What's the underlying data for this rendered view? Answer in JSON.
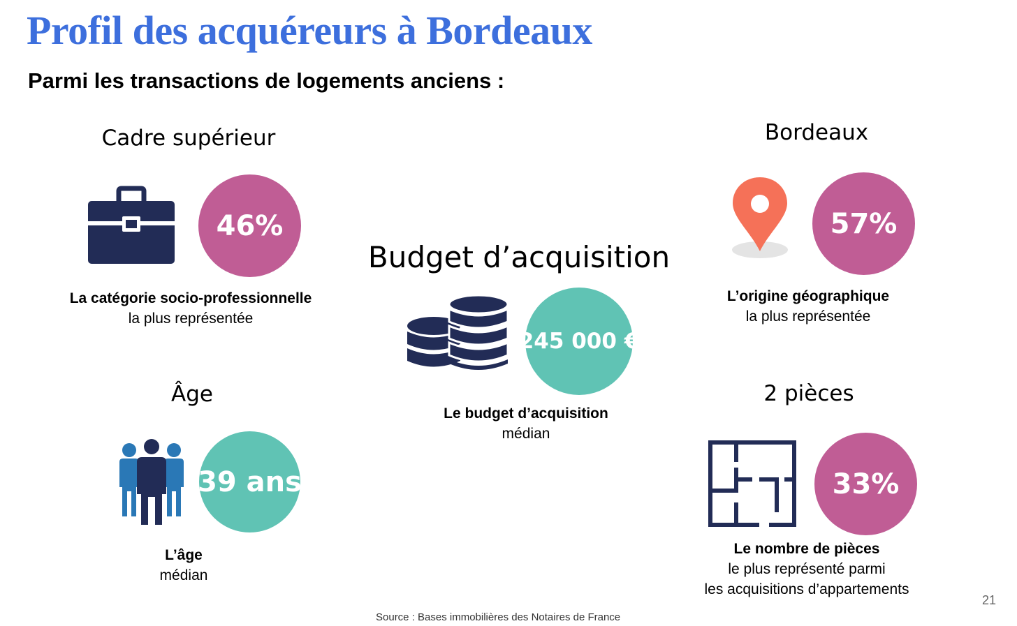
{
  "title": "Profil des acquéreurs à Bordeaux",
  "subtitle": "Parmi les transactions de logements anciens :",
  "colors": {
    "title": "#3d6fdd",
    "pink": "#c05d95",
    "teal": "#60c3b4",
    "navy": "#222c56",
    "pin": "#f57158"
  },
  "blocks": {
    "csp": {
      "heading": "Cadre supérieur",
      "value": "46%",
      "caption_bold": "La catégorie socio-professionnelle",
      "caption_normal": "la plus représentée",
      "icon": "briefcase-icon"
    },
    "origin": {
      "heading": "Bordeaux",
      "value": "57%",
      "caption_bold": "L’origine géographique",
      "caption_normal": "la plus représentée",
      "icon": "map-pin-icon"
    },
    "budget": {
      "heading": "Budget d’acquisition",
      "value": "245 000 €",
      "caption_bold": "Le budget d’acquisition",
      "caption_normal": "médian",
      "icon": "coins-icon"
    },
    "age": {
      "heading": "Âge",
      "value": "39 ans",
      "caption_bold": "L’âge",
      "caption_normal": "médian",
      "icon": "people-group-icon"
    },
    "rooms": {
      "heading": "2 pièces",
      "value": "33%",
      "caption_bold": "Le nombre de pièces",
      "caption_normal_1": "le plus représenté parmi",
      "caption_normal_2": "les acquisitions d’appartements",
      "icon": "floor-plan-icon"
    }
  },
  "source": "Source :  Bases immobilières des Notaires de France",
  "page_number": "21"
}
